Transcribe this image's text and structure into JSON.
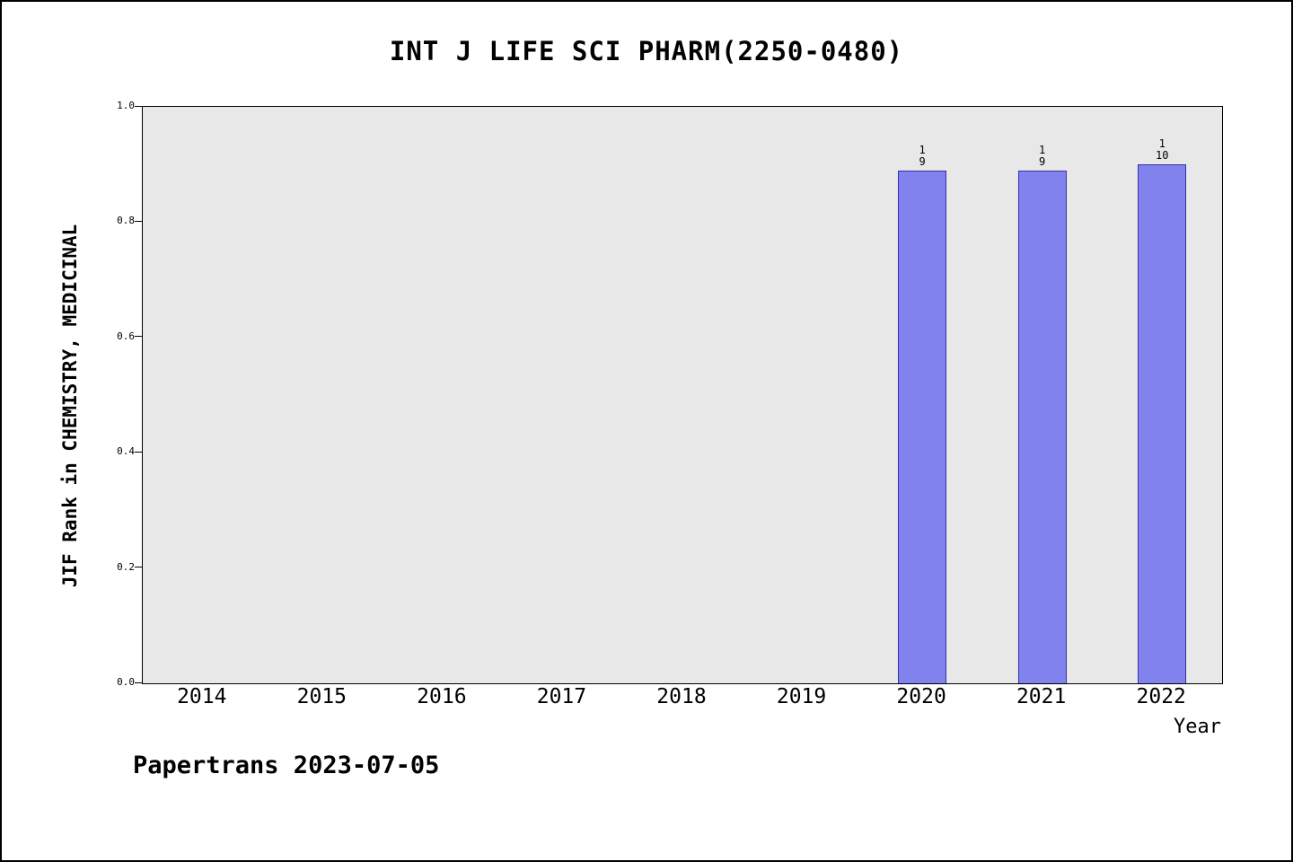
{
  "footer": "Papertrans 2023-07-05",
  "chart_data": {
    "type": "bar",
    "title": "INT J LIFE SCI PHARM(2250-0480)",
    "xlabel": "Year",
    "ylabel": "JIF Rank in CHEMISTRY, MEDICINAL",
    "categories": [
      "2014",
      "2015",
      "2016",
      "2017",
      "2018",
      "2019",
      "2020",
      "2021",
      "2022"
    ],
    "values": [
      null,
      null,
      null,
      null,
      null,
      null,
      0.889,
      0.889,
      0.9
    ],
    "bar_label_lines": [
      null,
      null,
      null,
      null,
      null,
      null,
      [
        "1",
        "9"
      ],
      [
        "1",
        "9"
      ],
      [
        "1",
        "10"
      ]
    ],
    "bar_labels_as_fractions": [
      "",
      "",
      "",
      "",
      "",
      "",
      "1/9",
      "1/9",
      "1/10"
    ],
    "ylim": [
      0.0,
      1.0
    ],
    "yticks": [
      {
        "label": "0.0",
        "value": 0.0
      },
      {
        "label": "0.2",
        "value": 0.2
      },
      {
        "label": "0.4",
        "value": 0.4
      },
      {
        "label": "0.6",
        "value": 0.6
      },
      {
        "label": "0.8",
        "value": 0.8
      },
      {
        "label": "1.0",
        "value": 1.0
      }
    ],
    "grid": false,
    "legend": null,
    "colors": {
      "bar_fill": "#8282ee",
      "bar_edge": "#3333aa",
      "plot_bg": "#e8e8e8",
      "page_bg": "#ffffff",
      "text": "#000000"
    }
  }
}
